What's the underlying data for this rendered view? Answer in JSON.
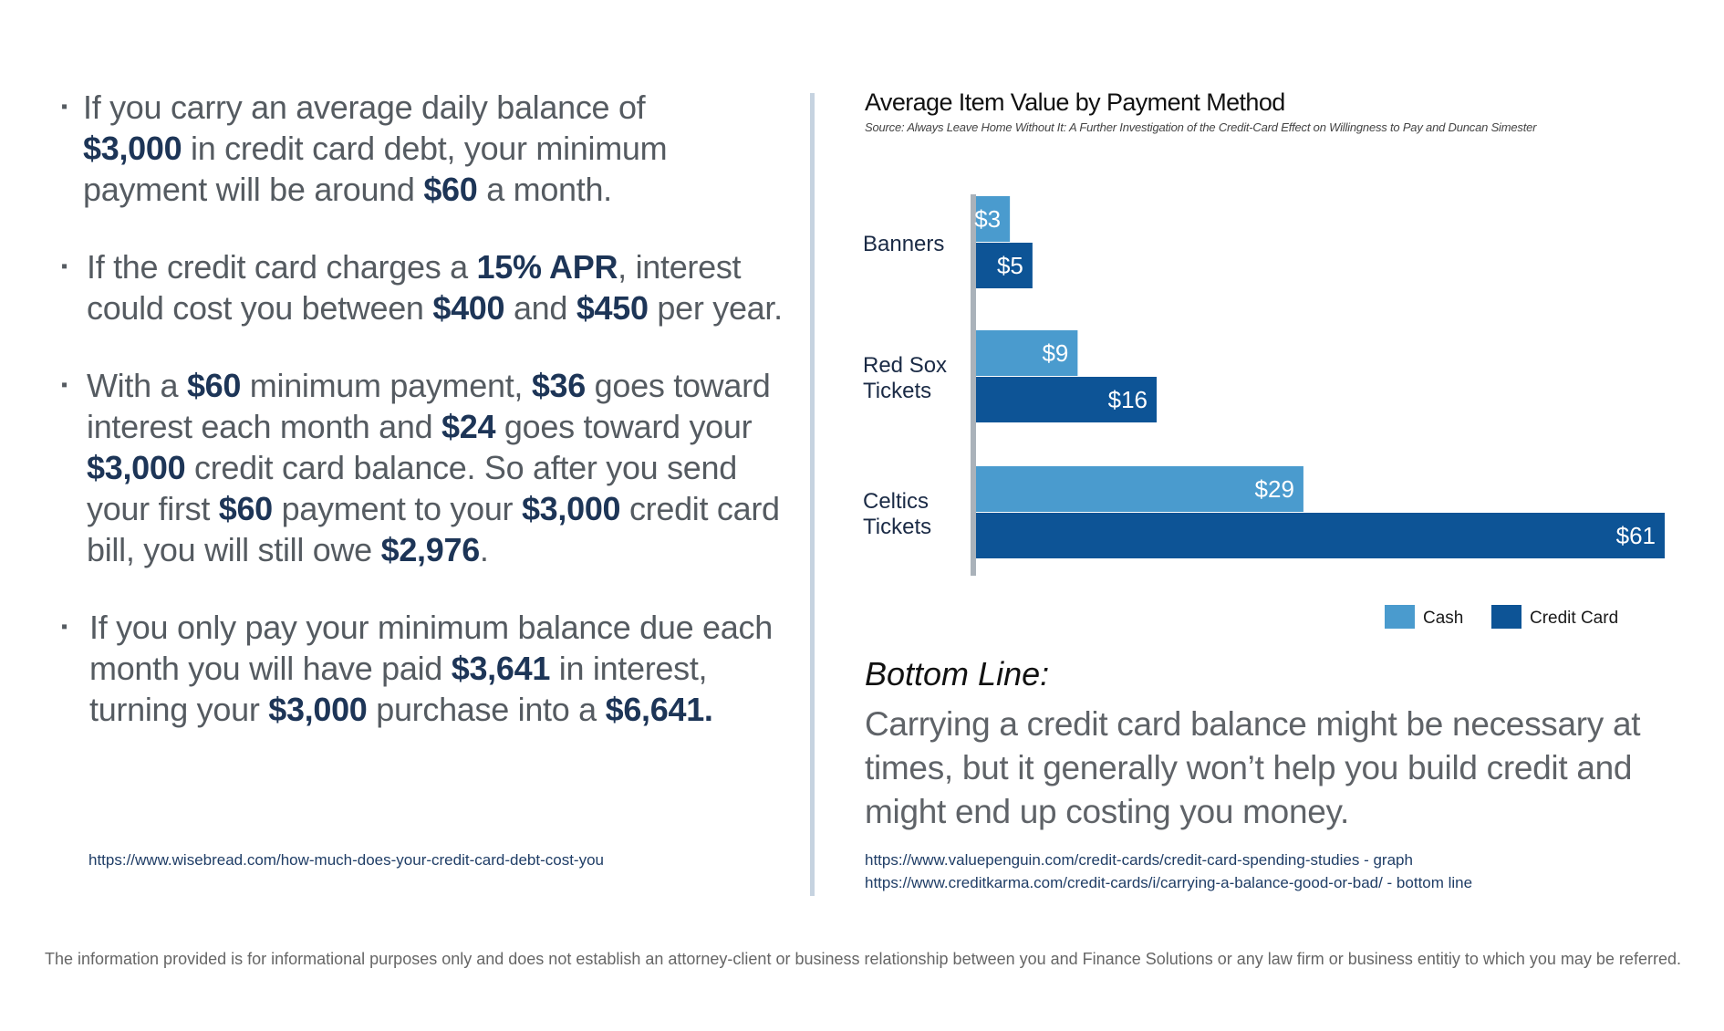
{
  "bullets": [
    {
      "parts": [
        {
          "t": "If you carry an average daily balance of ",
          "b": false
        },
        {
          "t": "$3,000",
          "b": true
        },
        {
          "t": " in credit card debt, your minimum payment will be around ",
          "b": false
        },
        {
          "t": "$60",
          "b": true
        },
        {
          "t": " a month.",
          "b": false
        }
      ]
    },
    {
      "parts": [
        {
          "t": "If the credit card charges a ",
          "b": false
        },
        {
          "t": "15% APR",
          "b": true
        },
        {
          "t": ", interest could cost you between ",
          "b": false
        },
        {
          "t": "$400",
          "b": true
        },
        {
          "t": " and ",
          "b": false
        },
        {
          "t": "$450",
          "b": true
        },
        {
          "t": " per year.",
          "b": false
        }
      ]
    },
    {
      "parts": [
        {
          "t": "With a ",
          "b": false
        },
        {
          "t": "$60",
          "b": true
        },
        {
          "t": " minimum payment, ",
          "b": false
        },
        {
          "t": "$36",
          "b": true
        },
        {
          "t": " goes toward interest each month and ",
          "b": false
        },
        {
          "t": "$24",
          "b": true
        },
        {
          "t": " goes toward your ",
          "b": false
        },
        {
          "t": "$3,000",
          "b": true
        },
        {
          "t": " credit card balance. So after you send your first ",
          "b": false
        },
        {
          "t": "$60",
          "b": true
        },
        {
          "t": " payment to your ",
          "b": false
        },
        {
          "t": "$3,000",
          "b": true
        },
        {
          "t": " credit card bill, you will still owe ",
          "b": false
        },
        {
          "t": "$2,976",
          "b": true
        },
        {
          "t": ".",
          "b": false
        }
      ]
    },
    {
      "parts": [
        {
          "t": "If you only pay your minimum balance due each month you will have paid ",
          "b": false
        },
        {
          "t": "$3,641",
          "b": true
        },
        {
          "t": " in interest, turning your ",
          "b": false
        },
        {
          "t": "$3,000",
          "b": true
        },
        {
          "t": " purchase into a ",
          "b": false
        },
        {
          "t": "$6,641.",
          "b": true
        }
      ]
    }
  ],
  "left_source": "https://www.wisebread.com/how-much-does-your-credit-card-debt-cost-you",
  "chart_data": {
    "type": "bar",
    "orientation": "horizontal",
    "title": "Average Item Value by Payment Method",
    "subtitle": "Source: Always Leave Home Without It: A Further Investigation of the Credit-Card Effect on Willingness to Pay and Duncan Simester",
    "categories": [
      "Banners",
      "Red Sox Tickets",
      "Celtics Tickets"
    ],
    "category_lines": [
      [
        "Banners"
      ],
      [
        "Red Sox",
        "Tickets"
      ],
      [
        "Celtics",
        "Tickets"
      ]
    ],
    "series": [
      {
        "name": "Cash",
        "values": [
          3,
          9,
          29
        ],
        "labels": [
          "$3",
          "$9",
          "$29"
        ],
        "color": "#4a9bce"
      },
      {
        "name": "Credit Card",
        "values": [
          5,
          16,
          61
        ],
        "labels": [
          "$5",
          "$16",
          "$61"
        ],
        "color": "#0d5496"
      }
    ],
    "xlim": [
      0,
      61
    ],
    "grid": false,
    "legend": "bottom-right",
    "axis_color": "#aab2ba"
  },
  "bottom_line": {
    "heading": "Bottom Line:",
    "text": "Carrying a credit card balance might be necessary at times, but it generally won’t help you build credit and might end up costing you money."
  },
  "right_sources": [
    "https://www.valuepenguin.com/credit-cards/credit-card-spending-studies - graph",
    "https://www.creditkarma.com/credit-cards/i/carrying-a-balance-good-or-bad/ - bottom line"
  ],
  "disclaimer": "The information provided is for informational purposes only and does not establish an attorney-client or business relationship between you and Finance Solutions or any law firm or business entitiy to which you may be referred."
}
